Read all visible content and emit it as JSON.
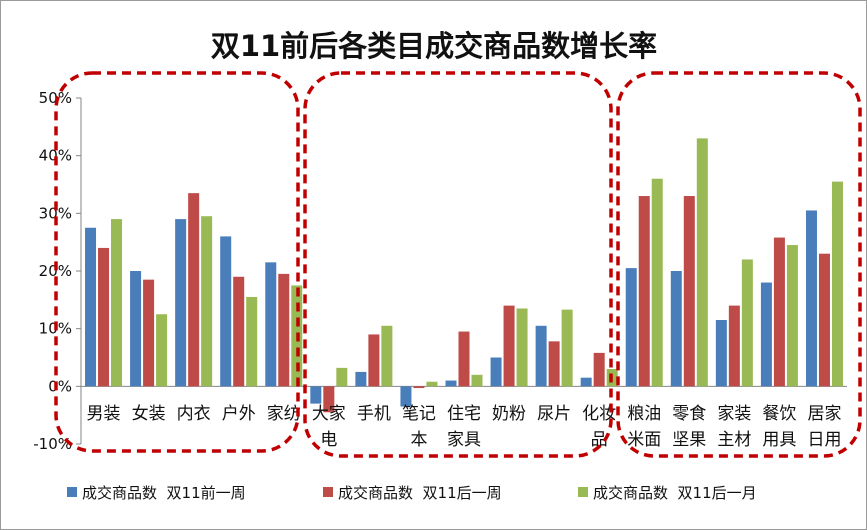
{
  "chart_data": {
    "type": "bar",
    "title": "双11前后各类目成交商品数增长率",
    "xlabel": "",
    "ylabel": "",
    "ylim": [
      -10,
      50
    ],
    "yticks": [
      "-10%",
      "0%",
      "10%",
      "20%",
      "30%",
      "40%",
      "50%"
    ],
    "grid": false,
    "legend_position": "bottom",
    "categories": [
      "男装",
      "女装",
      "内衣",
      "户外",
      "家纺",
      "大家电",
      "手机",
      "笔记本",
      "住宅家具",
      "奶粉",
      "尿片",
      "化妆品",
      "粮油米面",
      "零食坚果",
      "家装主材",
      "餐饮用具",
      "居家日用"
    ],
    "category_lines": [
      [
        "男装"
      ],
      [
        "女装"
      ],
      [
        "内衣"
      ],
      [
        "户外"
      ],
      [
        "家纺"
      ],
      [
        "大家",
        "电"
      ],
      [
        "手机"
      ],
      [
        "笔记",
        "本"
      ],
      [
        "住宅",
        "家具"
      ],
      [
        "奶粉"
      ],
      [
        "尿片"
      ],
      [
        "化妆",
        "品"
      ],
      [
        "粮油",
        "米面"
      ],
      [
        "零食",
        "坚果"
      ],
      [
        "家装",
        "主材"
      ],
      [
        "餐饮",
        "用具"
      ],
      [
        "居家",
        "日用"
      ]
    ],
    "series": [
      {
        "name": "成交商品数  双11前一周",
        "color": "#4a7ebb",
        "values": [
          27.5,
          20,
          29,
          26,
          21.5,
          -3,
          2.5,
          -3.5,
          1,
          5,
          10.5,
          1.5,
          20.5,
          20,
          11.5,
          18,
          30.5
        ]
      },
      {
        "name": "成交商品数  双11后一周",
        "color": "#be4b48",
        "values": [
          24,
          18.5,
          33.5,
          19,
          19.5,
          -4.5,
          9,
          -0.3,
          9.5,
          14,
          7.8,
          5.8,
          33,
          33,
          14,
          25.8,
          23
        ]
      },
      {
        "name": "成交商品数  双11后一月",
        "color": "#98b954",
        "values": [
          29,
          12.5,
          29.5,
          15.5,
          17.5,
          3.2,
          10.5,
          0.8,
          2,
          13.5,
          13.3,
          3,
          36,
          43,
          22,
          24.5,
          35.5
        ]
      }
    ],
    "groups_highlighted": [
      [
        "男装",
        "女装",
        "内衣",
        "户外",
        "家纺"
      ],
      [
        "大家电",
        "手机",
        "笔记本",
        "住宅家具",
        "奶粉",
        "尿片",
        "化妆品"
      ],
      [
        "粮油米面",
        "零食坚果",
        "家装主材",
        "餐饮用具",
        "居家日用"
      ]
    ],
    "highlight_color": "#c00000"
  }
}
